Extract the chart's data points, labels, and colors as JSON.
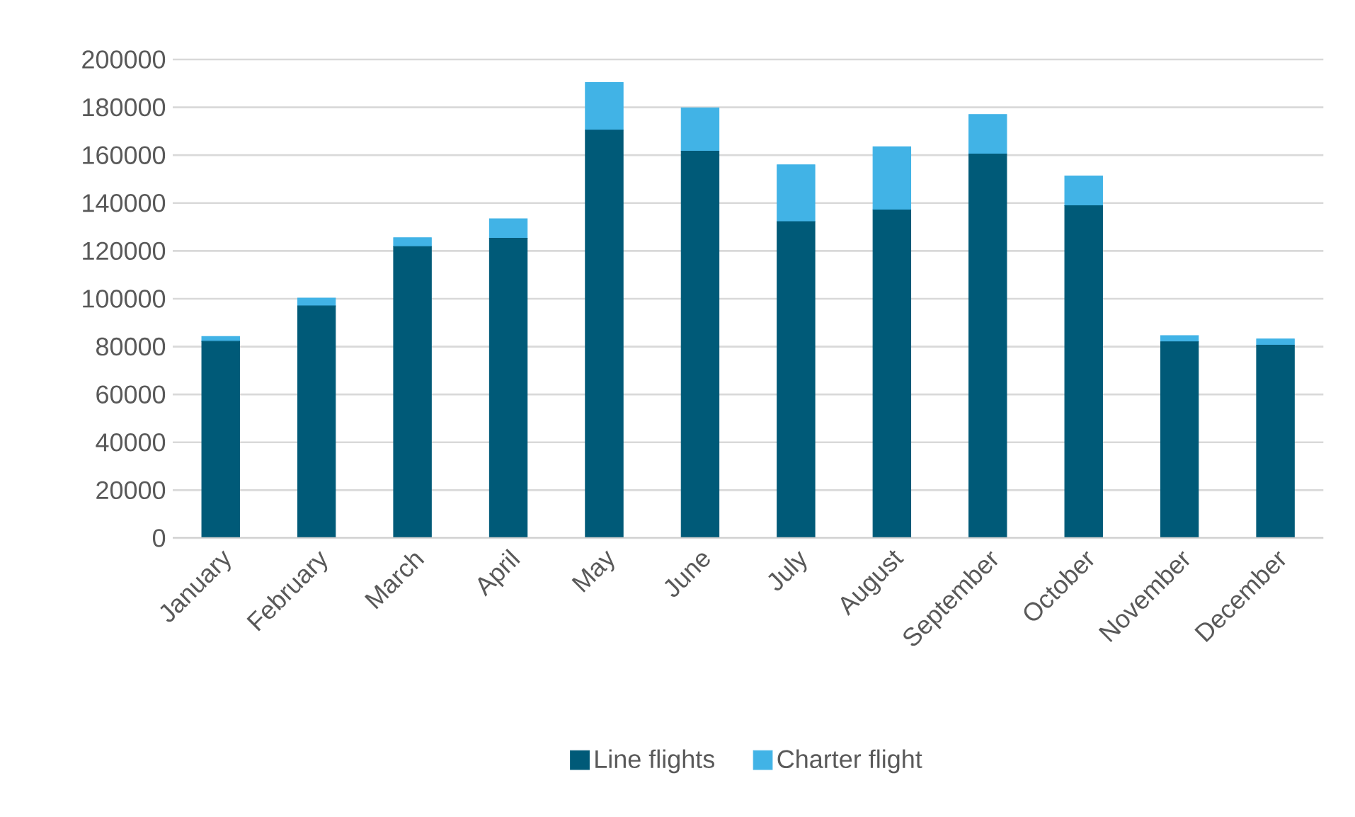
{
  "chart_data": {
    "type": "bar",
    "stacked": true,
    "categories": [
      "January",
      "February",
      "March",
      "April",
      "May",
      "June",
      "July",
      "August",
      "September",
      "October",
      "November",
      "December"
    ],
    "series": [
      {
        "name": "Line flights",
        "color": "#005a78",
        "values": [
          82200,
          97000,
          121800,
          125300,
          170500,
          161700,
          132200,
          137100,
          160500,
          138900,
          82000,
          80600
        ]
      },
      {
        "name": "Charter flight",
        "color": "#41b3e6",
        "values": [
          2000,
          3300,
          3700,
          8100,
          19900,
          18100,
          23800,
          26400,
          16500,
          12400,
          2600,
          2600
        ]
      }
    ],
    "ylim": [
      0,
      200000
    ],
    "yticks": [
      0,
      20000,
      40000,
      60000,
      80000,
      100000,
      120000,
      140000,
      160000,
      180000,
      200000
    ],
    "grid": "y",
    "legend": "bottom"
  }
}
